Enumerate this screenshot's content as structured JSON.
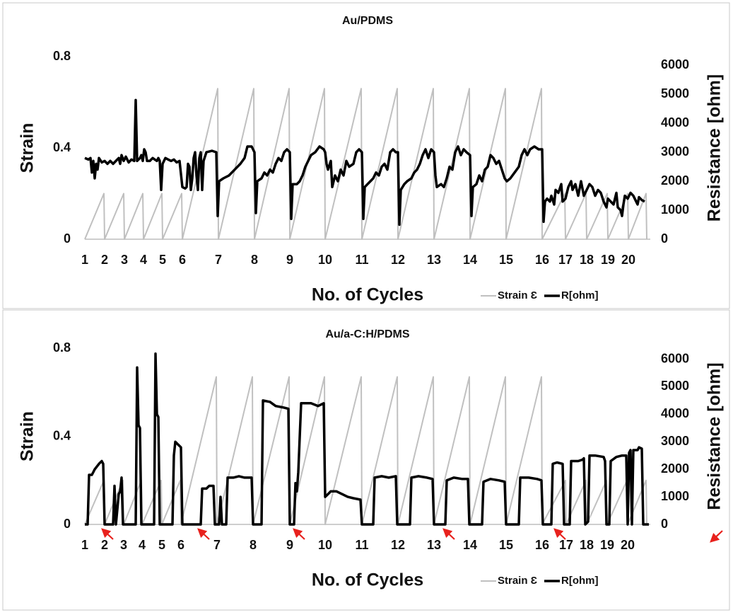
{
  "chart_data": [
    {
      "type": "line",
      "title": "Au/PDMS",
      "x_label": "No. of Cycles",
      "y_label": "Strain",
      "y2_label": "Resistance [ohm]",
      "xlim": [
        0,
        800
      ],
      "ylim": [
        0,
        0.8
      ],
      "y2lim": [
        0,
        6300
      ],
      "xticks": [
        {
          "value": 0,
          "label": "1"
        },
        {
          "value": 28,
          "label": "2"
        },
        {
          "value": 56,
          "label": "3"
        },
        {
          "value": 83,
          "label": "4"
        },
        {
          "value": 110,
          "label": "5"
        },
        {
          "value": 138,
          "label": "6"
        },
        {
          "value": 189,
          "label": "7"
        },
        {
          "value": 240,
          "label": "8"
        },
        {
          "value": 290,
          "label": "9"
        },
        {
          "value": 340,
          "label": "10"
        },
        {
          "value": 392,
          "label": "11"
        },
        {
          "value": 443,
          "label": "12"
        },
        {
          "value": 494,
          "label": "13"
        },
        {
          "value": 545,
          "label": "14"
        },
        {
          "value": 596,
          "label": "15"
        },
        {
          "value": 647,
          "label": "16"
        },
        {
          "value": 680,
          "label": "17"
        },
        {
          "value": 710,
          "label": "18"
        },
        {
          "value": 740,
          "label": "19"
        },
        {
          "value": 769,
          "label": "20"
        }
      ],
      "yticks": [
        0,
        0.4,
        0.8
      ],
      "y2ticks": [
        0,
        1000,
        2000,
        3000,
        4000,
        5000,
        6000
      ],
      "legend": "bottom-right",
      "series": [
        {
          "name": "Strain Ɛ",
          "color": "#c0c0c0",
          "width": 2,
          "x": [
            0,
            27,
            28,
            55,
            56,
            82,
            83,
            109,
            110,
            137,
            138,
            188,
            189,
            239,
            240,
            289,
            290,
            339,
            340,
            391,
            392,
            442,
            443,
            493,
            494,
            544,
            545,
            595,
            596,
            646,
            647,
            679,
            680,
            709,
            710,
            739,
            740,
            768,
            769,
            794,
            795
          ],
          "values": [
            0,
            0.2,
            0,
            0.2,
            0,
            0.2,
            0,
            0.2,
            0,
            0.2,
            0,
            0.66,
            0,
            0.66,
            0,
            0.66,
            0,
            0.66,
            0,
            0.66,
            0,
            0.66,
            0,
            0.66,
            0,
            0.66,
            0,
            0.66,
            0,
            0.66,
            0,
            0.2,
            0,
            0.2,
            0,
            0.2,
            0,
            0.2,
            0,
            0.2,
            0
          ]
        },
        {
          "name": "R[ohm]",
          "color": "#000000",
          "width": 3.5,
          "axis": "y2",
          "x": [
            0,
            5,
            8,
            10,
            12,
            14,
            16,
            18,
            20,
            24,
            28,
            32,
            36,
            40,
            44,
            48,
            50,
            52,
            55,
            58,
            62,
            66,
            70,
            72,
            74,
            78,
            80,
            82,
            84,
            86,
            88,
            92,
            96,
            99,
            102,
            104,
            106,
            108,
            110,
            114,
            118,
            122,
            126,
            130,
            134,
            138,
            142,
            144,
            146,
            148,
            150,
            152,
            154,
            156,
            158,
            160,
            162,
            164,
            166,
            168,
            172,
            180,
            186,
            188,
            190,
            196,
            204,
            212,
            220,
            226,
            230,
            236,
            240,
            242,
            244,
            250,
            254,
            258,
            262,
            266,
            270,
            274,
            278,
            282,
            286,
            290,
            292,
            294,
            300,
            304,
            308,
            312,
            316,
            320,
            326,
            332,
            338,
            340,
            342,
            344,
            348,
            350,
            354,
            358,
            362,
            366,
            370,
            374,
            380,
            384,
            388,
            392,
            394,
            396,
            400,
            404,
            408,
            412,
            416,
            420,
            424,
            428,
            432,
            436,
            440,
            443,
            445,
            447,
            452,
            456,
            462,
            466,
            470,
            474,
            478,
            482,
            486,
            490,
            494,
            496,
            498,
            504,
            508,
            512,
            516,
            520,
            524,
            528,
            532,
            536,
            540,
            545,
            547,
            549,
            554,
            558,
            562,
            566,
            570,
            574,
            578,
            582,
            586,
            590,
            594,
            597,
            602,
            608,
            614,
            618,
            622,
            626,
            630,
            636,
            642,
            647,
            649,
            651,
            654,
            658,
            660,
            664,
            666,
            670,
            674,
            676,
            680,
            684,
            688,
            690,
            694,
            698,
            702,
            706,
            710,
            714,
            718,
            722,
            726,
            730,
            734,
            738,
            740,
            744,
            748,
            752,
            754,
            758,
            760,
            762,
            764,
            768,
            772,
            776,
            780,
            782,
            784,
            788,
            792
          ],
          "values": [
            2800,
            2750,
            2800,
            2300,
            2700,
            2100,
            2600,
            2400,
            2800,
            2650,
            2700,
            2600,
            2700,
            2600,
            2700,
            2800,
            2600,
            2900,
            2700,
            2850,
            2650,
            2750,
            2700,
            4800,
            2700,
            2800,
            2900,
            2700,
            3100,
            3000,
            2700,
            2700,
            2800,
            2750,
            2700,
            2800,
            2700,
            1700,
            2600,
            2800,
            2750,
            2700,
            2750,
            2650,
            2700,
            1800,
            1750,
            1800,
            2600,
            2500,
            1700,
            2100,
            2800,
            3000,
            2200,
            1700,
            2800,
            3000,
            1700,
            2700,
            3000,
            3050,
            3000,
            800,
            2000,
            2100,
            2200,
            2400,
            2600,
            2800,
            3200,
            3200,
            3000,
            900,
            2000,
            2100,
            2300,
            2200,
            2400,
            2300,
            2600,
            2800,
            2700,
            3000,
            3100,
            3000,
            700,
            1900,
            1900,
            2000,
            2200,
            2500,
            2700,
            2900,
            3000,
            3200,
            3100,
            3000,
            2600,
            2400,
            2700,
            1800,
            2200,
            2000,
            2400,
            2200,
            2700,
            2500,
            2600,
            3000,
            3100,
            3000,
            700,
            1800,
            1900,
            2000,
            2100,
            2300,
            2200,
            2500,
            2600,
            2400,
            3000,
            3100,
            3000,
            3000,
            500,
            1700,
            1900,
            2000,
            2100,
            2300,
            2400,
            2600,
            2900,
            3100,
            2800,
            3100,
            3000,
            2200,
            1800,
            1900,
            1800,
            2100,
            2500,
            2400,
            3000,
            3200,
            2900,
            3100,
            3000,
            2900,
            800,
            1800,
            1900,
            2200,
            2000,
            2400,
            2500,
            2900,
            2800,
            2600,
            2700,
            2400,
            2100,
            2000,
            2100,
            2300,
            2500,
            2900,
            3100,
            2900,
            3100,
            3200,
            3100,
            3100,
            600,
            1300,
            1400,
            1300,
            1500,
            1200,
            1700,
            1600,
            1900,
            1300,
            1400,
            1800,
            2000,
            1700,
            1900,
            1500,
            2000,
            1500,
            1700,
            1900,
            1800,
            1500,
            1700,
            1600,
            1300,
            1100,
            1400,
            1300,
            1200,
            1600,
            1100,
            1000,
            800,
            1200,
            1500,
            1400,
            1600,
            1500,
            1300,
            1200,
            1450,
            1350,
            1300
          ]
        }
      ]
    },
    {
      "type": "line",
      "title": "Au/a-C:H/PDMS",
      "x_label": "No. of Cycles",
      "y_label": "Strain",
      "y2_label": "Resistance [ohm]",
      "xlim": [
        0,
        800
      ],
      "ylim": [
        0,
        0.8
      ],
      "y2lim": [
        0,
        6400
      ],
      "xticks": [
        {
          "value": 0,
          "label": "1"
        },
        {
          "value": 28,
          "label": "2"
        },
        {
          "value": 55,
          "label": "3"
        },
        {
          "value": 81,
          "label": "4"
        },
        {
          "value": 109,
          "label": "5"
        },
        {
          "value": 136,
          "label": "6"
        },
        {
          "value": 187,
          "label": "7"
        },
        {
          "value": 238,
          "label": "8"
        },
        {
          "value": 290,
          "label": "9"
        },
        {
          "value": 340,
          "label": "10"
        },
        {
          "value": 392,
          "label": "11"
        },
        {
          "value": 443,
          "label": "12"
        },
        {
          "value": 494,
          "label": "13"
        },
        {
          "value": 545,
          "label": "14"
        },
        {
          "value": 596,
          "label": "15"
        },
        {
          "value": 647,
          "label": "16"
        },
        {
          "value": 681,
          "label": "17"
        },
        {
          "value": 710,
          "label": "18"
        },
        {
          "value": 739,
          "label": "19"
        },
        {
          "value": 768,
          "label": "20"
        }
      ],
      "yticks": [
        0,
        0.4,
        0.8
      ],
      "y2ticks": [
        0,
        1000,
        2000,
        3000,
        4000,
        5000,
        6000
      ],
      "legend": "bottom-right",
      "series": [
        {
          "name": "Strain Ɛ",
          "color": "#c0c0c0",
          "width": 2,
          "x": [
            0,
            27,
            28,
            54,
            55,
            80,
            81,
            108,
            109,
            135,
            136,
            186,
            187,
            237,
            238,
            289,
            290,
            339,
            340,
            391,
            392,
            442,
            443,
            493,
            494,
            544,
            545,
            595,
            596,
            646,
            647,
            680,
            681,
            709,
            710,
            738,
            739,
            767,
            768,
            794,
            795
          ],
          "values": [
            0,
            0.2,
            0,
            0.2,
            0,
            0.2,
            0,
            0.2,
            0,
            0.2,
            0,
            0.67,
            0,
            0.67,
            0,
            0.67,
            0,
            0.67,
            0,
            0.67,
            0,
            0.67,
            0,
            0.67,
            0,
            0.67,
            0,
            0.67,
            0,
            0.67,
            0,
            0.2,
            0,
            0.2,
            0,
            0.2,
            0,
            0.2,
            0,
            0.2,
            0
          ]
        },
        {
          "name": "R[ohm]",
          "color": "#000000",
          "width": 3.5,
          "axis": "y2",
          "x": [
            0,
            4,
            6,
            10,
            14,
            20,
            24,
            26,
            28,
            40,
            42,
            44,
            48,
            50,
            52,
            54,
            72,
            74,
            76,
            78,
            80,
            98,
            100,
            102,
            104,
            106,
            124,
            126,
            128,
            132,
            136,
            138,
            164,
            166,
            172,
            176,
            182,
            184,
            190,
            192,
            194,
            200,
            202,
            210,
            218,
            226,
            236,
            238,
            250,
            252,
            262,
            270,
            280,
            288,
            290,
            296,
            298,
            300,
            302,
            306,
            320,
            330,
            338,
            340,
            344,
            348,
            356,
            364,
            372,
            380,
            390,
            392,
            408,
            410,
            420,
            430,
            440,
            442,
            460,
            462,
            472,
            484,
            492,
            494,
            510,
            512,
            522,
            534,
            542,
            544,
            562,
            564,
            574,
            586,
            594,
            596,
            614,
            616,
            628,
            640,
            646,
            648,
            660,
            662,
            668,
            676,
            678,
            686,
            688,
            698,
            704,
            706,
            708,
            712,
            714,
            722,
            734,
            736,
            738,
            742,
            744,
            752,
            760,
            766,
            768,
            770,
            772,
            774,
            776,
            782,
            784,
            788,
            790,
            798
          ],
          "values": [
            0,
            0,
            1800,
            1800,
            2000,
            2200,
            2300,
            2200,
            0,
            0,
            1400,
            0,
            1100,
            1200,
            1700,
            0,
            0,
            5700,
            3600,
            3500,
            0,
            0,
            6200,
            4000,
            3900,
            0,
            0,
            2500,
            3000,
            2900,
            2800,
            0,
            0,
            1300,
            1300,
            1400,
            1400,
            0,
            0,
            1000,
            0,
            0,
            1700,
            1700,
            1750,
            1700,
            1700,
            0,
            0,
            4500,
            4450,
            4300,
            4250,
            4200,
            0,
            0,
            1500,
            1200,
            1900,
            4400,
            4400,
            4300,
            4400,
            1000,
            1100,
            1200,
            1200,
            1100,
            1000,
            950,
            900,
            0,
            0,
            1700,
            1750,
            1700,
            1750,
            0,
            0,
            1700,
            1750,
            1700,
            1650,
            0,
            0,
            1600,
            1700,
            1650,
            1650,
            0,
            0,
            1550,
            1650,
            1600,
            1550,
            0,
            0,
            1700,
            1700,
            1650,
            1600,
            0,
            0,
            2200,
            2250,
            2200,
            0,
            0,
            2300,
            2300,
            2350,
            2400,
            0,
            100,
            2500,
            2500,
            2450,
            2300,
            0,
            0,
            2300,
            2450,
            2500,
            2500,
            0,
            2600,
            2700,
            0,
            2700,
            2700,
            2800,
            2750,
            0,
            0
          ]
        }
      ]
    }
  ]
}
